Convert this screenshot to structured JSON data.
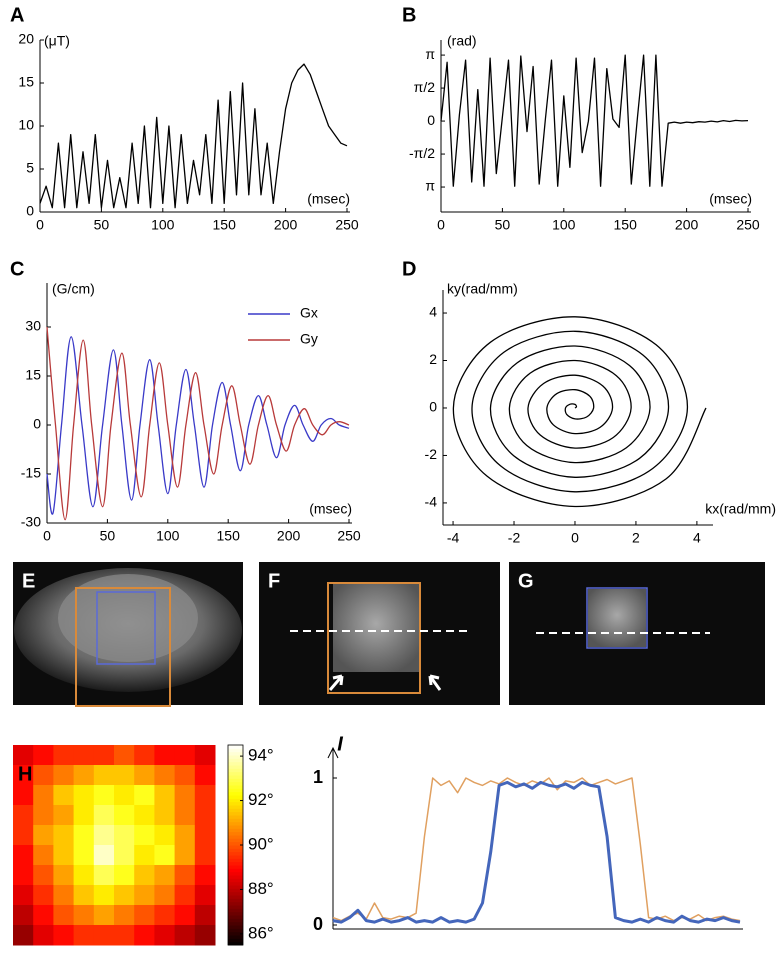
{
  "chart_data": [
    {
      "type": "line",
      "panel": "A",
      "ylabel": "(μT)",
      "xlabel": "(msec)",
      "color": "#000000",
      "x": [
        0,
        5,
        10,
        15,
        20,
        25,
        30,
        35,
        40,
        45,
        50,
        55,
        60,
        65,
        70,
        75,
        80,
        85,
        90,
        95,
        100,
        105,
        110,
        115,
        120,
        125,
        130,
        135,
        140,
        145,
        150,
        155,
        160,
        165,
        170,
        175,
        180,
        185,
        190,
        195,
        200,
        205,
        210,
        215,
        220,
        225,
        230,
        235,
        240,
        245,
        250
      ],
      "values": [
        1,
        3,
        0.5,
        8,
        0.5,
        9,
        0.5,
        7,
        1,
        9,
        0.5,
        6,
        0.5,
        4,
        0.5,
        8,
        1,
        10,
        0.5,
        11,
        1,
        10,
        0.5,
        9,
        1,
        6,
        2,
        9,
        1,
        13,
        1,
        14,
        2,
        15,
        2,
        12,
        2,
        8,
        1,
        7,
        12,
        15,
        16.5,
        17.2,
        16,
        14,
        12,
        10,
        9,
        8,
        7.7
      ],
      "xlim": [
        0,
        250
      ],
      "ylim": [
        0,
        20
      ],
      "xticks": [
        0,
        50,
        100,
        150,
        200,
        250
      ],
      "yticks": [
        0,
        5,
        10,
        15,
        20
      ]
    },
    {
      "type": "line",
      "panel": "B",
      "ylabel": "(rad)",
      "xlabel": "(msec)",
      "color": "#000000",
      "x": [
        0,
        5,
        10,
        15,
        20,
        25,
        30,
        35,
        40,
        45,
        50,
        55,
        60,
        65,
        70,
        75,
        80,
        85,
        90,
        95,
        100,
        105,
        110,
        115,
        120,
        125,
        130,
        135,
        140,
        145,
        150,
        155,
        160,
        165,
        170,
        175,
        180,
        185,
        190,
        195,
        200,
        205,
        210,
        215,
        220,
        225,
        230,
        235,
        240,
        245,
        250
      ],
      "values": [
        0,
        2.8,
        -3.1,
        0.3,
        2.9,
        -2.9,
        1.5,
        -3.1,
        3.0,
        -2.5,
        0.2,
        2.9,
        -3.1,
        3.1,
        -0.5,
        2.6,
        -3.0,
        0.1,
        2.9,
        -3.1,
        1.2,
        -2.2,
        3.0,
        -1.5,
        0,
        3.0,
        -3.1,
        2.5,
        0.1,
        -0.3,
        3.14,
        -3.0,
        0.2,
        3.14,
        -3.1,
        3.14,
        -3.1,
        -0.1,
        -0.05,
        -0.1,
        -0.05,
        -0.08,
        -0.03,
        -0.05,
        0,
        -0.04,
        0.02,
        -0.02,
        0.03,
        0.01,
        0.02
      ],
      "xlim": [
        0,
        250
      ],
      "ylim": [
        -4.33,
        3.86
      ],
      "xticks": [
        0,
        50,
        100,
        150,
        200,
        250
      ],
      "yticks": [
        {
          "value": 3.1416,
          "label": "π"
        },
        {
          "value": 1.5708,
          "label": "π/2"
        },
        0,
        {
          "value": -1.5708,
          "label": "-π/2"
        },
        {
          "value": -3.1416,
          "label": "π"
        }
      ]
    },
    {
      "type": "line",
      "panel": "C",
      "ylabel": "(G/cm)",
      "xlabel": "(msec)",
      "legend": "upper right",
      "series": [
        {
          "name": "Gx",
          "color": "#3a3ac8",
          "x": [
            0,
            5,
            12,
            20,
            29,
            38,
            46,
            55,
            62,
            70,
            77,
            85,
            92,
            100,
            107,
            115,
            122,
            130,
            137,
            145,
            152,
            160,
            167,
            175,
            182,
            190,
            197,
            205,
            212,
            220,
            227,
            235,
            242,
            250
          ],
          "values": [
            -15,
            -27,
            0,
            27,
            0,
            -25,
            0,
            23,
            0,
            -23,
            0,
            20,
            0,
            -21,
            0,
            17,
            0,
            -19,
            0,
            13,
            0,
            -14,
            0,
            9,
            0,
            -10,
            0,
            6,
            0,
            -5,
            0,
            2,
            0,
            -1
          ]
        },
        {
          "name": "Gy",
          "color": "#b83a3a",
          "x": [
            0,
            7,
            15,
            22,
            30,
            37,
            46,
            53,
            62,
            69,
            78,
            85,
            93,
            100,
            108,
            115,
            123,
            130,
            138,
            145,
            153,
            160,
            168,
            175,
            183,
            190,
            198,
            205,
            213,
            220,
            228,
            235,
            242,
            250
          ],
          "values": [
            30,
            0,
            -29,
            0,
            26,
            0,
            -25,
            0,
            22,
            0,
            -22,
            0,
            19,
            0,
            -19,
            0,
            16,
            0,
            -15,
            0,
            12,
            0,
            -12,
            0,
            9,
            0,
            -8,
            0,
            5,
            0,
            -3,
            0,
            1,
            0
          ]
        }
      ],
      "xlim": [
        0,
        250
      ],
      "ylim": [
        -30,
        30
      ],
      "xticks": [
        0,
        50,
        100,
        150,
        200,
        250
      ],
      "yticks": [
        -30,
        -15,
        0,
        15,
        30
      ]
    },
    {
      "type": "line",
      "panel": "D",
      "ylabel": "ky(rad/mm)",
      "xlabel": "kx(rad/mm)",
      "color": "#000000",
      "x": [
        0,
        0.05,
        0,
        -0.16,
        -0.31,
        -0.27,
        0,
        0.38,
        0.61,
        0.49,
        0,
        -0.6,
        -0.92,
        -0.71,
        0,
        0.82,
        1.23,
        0.92,
        0,
        -1.03,
        -1.54,
        -1.14,
        0,
        1.25,
        1.84,
        1.36,
        0,
        -1.47,
        -2.15,
        -1.58,
        0,
        1.68,
        2.46,
        1.79,
        0,
        -1.9,
        -2.77,
        -2.01,
        0,
        2.12,
        3.07,
        2.23,
        0,
        -2.34,
        -3.38,
        -2.44,
        0,
        2.55,
        3.69,
        2.66,
        0,
        -2.77,
        -3.99,
        -2.88,
        0,
        2.99,
        4.3
      ],
      "values": [
        0,
        0.05,
        0.15,
        0.16,
        0,
        -0.27,
        -0.46,
        -0.38,
        0,
        0.49,
        0.77,
        0.6,
        0,
        -0.71,
        -1.08,
        -0.82,
        0,
        0.92,
        1.38,
        1.03,
        0,
        -1.14,
        -1.69,
        -1.25,
        0,
        1.36,
        2,
        1.47,
        0,
        -1.58,
        -2.3,
        -1.68,
        0,
        1.79,
        2.61,
        1.9,
        0,
        -2.01,
        -2.92,
        -2.12,
        0,
        2.23,
        3.23,
        2.34,
        0,
        -2.44,
        -3.53,
        -2.55,
        0,
        2.66,
        3.84,
        2.77,
        0,
        -2.88,
        -4.15,
        -2.99,
        0
      ],
      "xlim": [
        -4.33,
        4.43
      ],
      "ylim": [
        -4.93,
        4.97
      ],
      "xticks": [
        -4,
        -2,
        0,
        2,
        4
      ],
      "yticks": [
        -4,
        -2,
        0,
        2,
        4
      ]
    },
    {
      "type": "heatmap",
      "panel": "H",
      "colormap": "hot",
      "clim": [
        85.5,
        94.5
      ],
      "cticks": [
        {
          "value": 86,
          "label": "86°"
        },
        {
          "value": 88,
          "label": "88°"
        },
        {
          "value": 90,
          "label": "90°"
        },
        {
          "value": 92,
          "label": "92°"
        },
        {
          "value": 94,
          "label": "94°"
        }
      ],
      "z": [
        [
          88.5,
          89,
          89.5,
          89.5,
          89.5,
          90,
          89.5,
          89,
          89,
          88.5
        ],
        [
          89,
          90,
          90.5,
          91,
          91.5,
          91.5,
          91,
          90.5,
          90,
          89
        ],
        [
          89,
          90.5,
          91.5,
          92,
          92.5,
          92,
          92.5,
          91.5,
          90.5,
          89.5
        ],
        [
          89.5,
          90.5,
          91,
          92,
          93,
          92.5,
          92,
          91.5,
          90.5,
          89.5
        ],
        [
          89.5,
          91,
          91.5,
          92.5,
          93.5,
          93,
          92.5,
          92,
          91,
          89.5
        ],
        [
          89,
          90.5,
          91.5,
          92.5,
          94,
          93,
          92,
          92.5,
          91,
          89.5
        ],
        [
          89,
          90,
          91,
          92,
          93,
          92.5,
          91.5,
          91,
          90,
          89
        ],
        [
          88.5,
          89.5,
          90.5,
          91.5,
          92,
          91.5,
          91,
          90.5,
          89.5,
          88.5
        ],
        [
          88,
          89,
          90,
          90.5,
          91,
          90.5,
          90,
          89.5,
          89,
          88
        ],
        [
          87.5,
          88.5,
          89,
          89.5,
          89.5,
          89.5,
          89,
          88.5,
          88,
          87.5
        ]
      ]
    },
    {
      "type": "line",
      "ylabel": "I",
      "ylim": [
        0,
        1
      ],
      "yticks": [
        0,
        1
      ],
      "series": [
        {
          "color": "#e0a060",
          "values": [
            0.05,
            0.03,
            0.06,
            0.08,
            0.04,
            0.15,
            0.05,
            0.04,
            0.06,
            0.05,
            0.08,
            0.6,
            1.0,
            0.95,
            0.98,
            0.9,
            1.0,
            0.97,
            0.95,
            0.98,
            0.96,
            1.0,
            0.97,
            0.95,
            0.98,
            0.96,
            1.0,
            0.92,
            0.98,
            0.97,
            1.0,
            0.95,
            0.97,
            0.99,
            0.96,
            0.98,
            1.0,
            0.55,
            0.05,
            0.04,
            0.06,
            0.03,
            0.05,
            0.04,
            0.07,
            0.03,
            0.05,
            0.06,
            0.04,
            0.03
          ]
        },
        {
          "color": "#4466bb",
          "values": [
            0.03,
            0.02,
            0.05,
            0.1,
            0.03,
            0.02,
            0.04,
            0.02,
            0.03,
            0.05,
            0.02,
            0.03,
            0.02,
            0.05,
            0.02,
            0.03,
            0.02,
            0.04,
            0.15,
            0.5,
            0.95,
            0.97,
            0.94,
            0.96,
            0.93,
            0.97,
            0.95,
            0.94,
            0.96,
            0.93,
            0.97,
            0.95,
            0.94,
            0.6,
            0.05,
            0.03,
            0.02,
            0.04,
            0.02,
            0.05,
            0.03,
            0.02,
            0.06,
            0.03,
            0.02,
            0.04,
            0.03,
            0.05,
            0.03,
            0.02
          ]
        }
      ]
    }
  ],
  "image_panels": [
    {
      "panel": "E"
    },
    {
      "panel": "F"
    },
    {
      "panel": "G"
    }
  ]
}
